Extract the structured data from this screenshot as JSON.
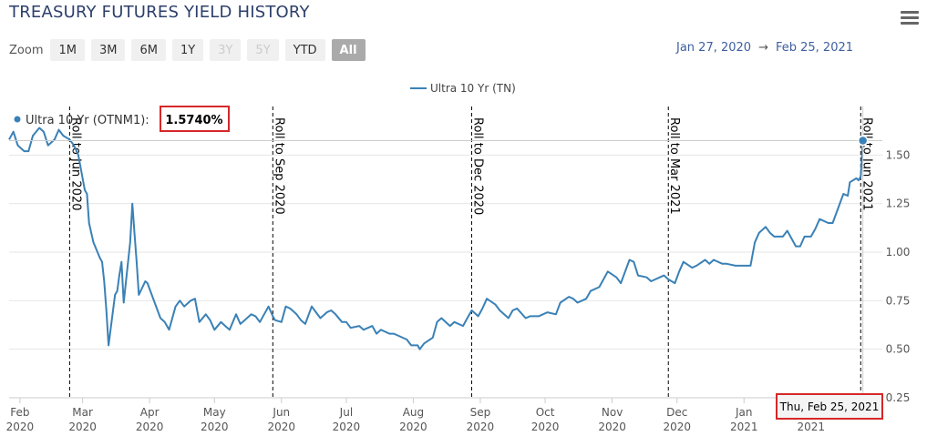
{
  "title": "TREASURY FUTURES YIELD HISTORY",
  "zoom": {
    "label": "Zoom",
    "buttons": [
      {
        "label": "1M",
        "state": "normal"
      },
      {
        "label": "3M",
        "state": "normal"
      },
      {
        "label": "6M",
        "state": "normal"
      },
      {
        "label": "1Y",
        "state": "normal"
      },
      {
        "label": "3Y",
        "state": "disabled"
      },
      {
        "label": "5Y",
        "state": "disabled"
      },
      {
        "label": "YTD",
        "state": "normal"
      },
      {
        "label": "All",
        "state": "selected"
      }
    ]
  },
  "range": {
    "from": "Jan 27, 2020",
    "arrow": "→",
    "to": "Feb 25, 2021"
  },
  "icons": {
    "menu": "hamburger-menu-icon"
  },
  "colors": {
    "series": "#3a81b6",
    "title": "#2d3f6b",
    "range": "#3f60a0",
    "highlight": "#d62728"
  },
  "chart_data": {
    "type": "line",
    "xlim": [
      "2020-01-27",
      "2021-03-06"
    ],
    "ylim": [
      0.25,
      1.75
    ],
    "grid": true,
    "legend_position": "top-center",
    "y_ticks": [
      "0.25",
      "0.50",
      "0.75",
      "1.00",
      "1.25",
      "1.50"
    ],
    "x_ticks": [
      {
        "date": "2020-02-01",
        "month": "Feb",
        "year": "2020"
      },
      {
        "date": "2020-03-01",
        "month": "Mar",
        "year": "2020"
      },
      {
        "date": "2020-04-01",
        "month": "Apr",
        "year": "2020"
      },
      {
        "date": "2020-05-01",
        "month": "May",
        "year": "2020"
      },
      {
        "date": "2020-06-01",
        "month": "Jun",
        "year": "2020"
      },
      {
        "date": "2020-07-01",
        "month": "Jul",
        "year": "2020"
      },
      {
        "date": "2020-08-01",
        "month": "Aug",
        "year": "2020"
      },
      {
        "date": "2020-09-01",
        "month": "Sep",
        "year": "2020"
      },
      {
        "date": "2020-10-01",
        "month": "Oct",
        "year": "2020"
      },
      {
        "date": "2020-11-01",
        "month": "Nov",
        "year": "2020"
      },
      {
        "date": "2020-12-01",
        "month": "Dec",
        "year": "2020"
      },
      {
        "date": "2021-01-01",
        "month": "Jan",
        "year": "2021"
      },
      {
        "date": "2021-02-01",
        "month": "Feb",
        "year": "2021"
      }
    ],
    "series": [
      {
        "name": "Ultra 10 Yr (TN)",
        "tooltip_name": "Ultra 10 Yr (OTNM1):",
        "last_value": "1.5740%",
        "points": [
          [
            "2020-01-27",
            1.58
          ],
          [
            "2020-01-29",
            1.62
          ],
          [
            "2020-01-31",
            1.55
          ],
          [
            "2020-02-03",
            1.52
          ],
          [
            "2020-02-05",
            1.52
          ],
          [
            "2020-02-07",
            1.6
          ],
          [
            "2020-02-10",
            1.64
          ],
          [
            "2020-02-12",
            1.62
          ],
          [
            "2020-02-14",
            1.55
          ],
          [
            "2020-02-17",
            1.58
          ],
          [
            "2020-02-19",
            1.63
          ],
          [
            "2020-02-21",
            1.6
          ],
          [
            "2020-02-24",
            1.58
          ],
          [
            "2020-02-26",
            1.55
          ],
          [
            "2020-02-28",
            1.5
          ],
          [
            "2020-03-02",
            1.32
          ],
          [
            "2020-03-03",
            1.3
          ],
          [
            "2020-03-04",
            1.15
          ],
          [
            "2020-03-05",
            1.1
          ],
          [
            "2020-03-06",
            1.05
          ],
          [
            "2020-03-09",
            0.97
          ],
          [
            "2020-03-10",
            0.95
          ],
          [
            "2020-03-11",
            0.85
          ],
          [
            "2020-03-12",
            0.7
          ],
          [
            "2020-03-13",
            0.52
          ],
          [
            "2020-03-16",
            0.78
          ],
          [
            "2020-03-17",
            0.8
          ],
          [
            "2020-03-18",
            0.88
          ],
          [
            "2020-03-19",
            0.95
          ],
          [
            "2020-03-20",
            0.74
          ],
          [
            "2020-03-23",
            1.05
          ],
          [
            "2020-03-24",
            1.25
          ],
          [
            "2020-03-25",
            1.1
          ],
          [
            "2020-03-26",
            0.95
          ],
          [
            "2020-03-27",
            0.78
          ],
          [
            "2020-03-30",
            0.85
          ],
          [
            "2020-03-31",
            0.84
          ],
          [
            "2020-04-02",
            0.78
          ],
          [
            "2020-04-06",
            0.66
          ],
          [
            "2020-04-08",
            0.64
          ],
          [
            "2020-04-10",
            0.6
          ],
          [
            "2020-04-13",
            0.72
          ],
          [
            "2020-04-15",
            0.75
          ],
          [
            "2020-04-17",
            0.72
          ],
          [
            "2020-04-20",
            0.75
          ],
          [
            "2020-04-22",
            0.76
          ],
          [
            "2020-04-24",
            0.64
          ],
          [
            "2020-04-27",
            0.68
          ],
          [
            "2020-04-29",
            0.65
          ],
          [
            "2020-05-01",
            0.6
          ],
          [
            "2020-05-04",
            0.64
          ],
          [
            "2020-05-06",
            0.62
          ],
          [
            "2020-05-08",
            0.6
          ],
          [
            "2020-05-11",
            0.68
          ],
          [
            "2020-05-13",
            0.63
          ],
          [
            "2020-05-15",
            0.65
          ],
          [
            "2020-05-18",
            0.68
          ],
          [
            "2020-05-20",
            0.67
          ],
          [
            "2020-05-22",
            0.64
          ],
          [
            "2020-05-26",
            0.72
          ],
          [
            "2020-05-28",
            0.67
          ],
          [
            "2020-05-29",
            0.65
          ],
          [
            "2020-06-01",
            0.64
          ],
          [
            "2020-06-03",
            0.72
          ],
          [
            "2020-06-05",
            0.71
          ],
          [
            "2020-06-08",
            0.68
          ],
          [
            "2020-06-10",
            0.65
          ],
          [
            "2020-06-12",
            0.63
          ],
          [
            "2020-06-15",
            0.72
          ],
          [
            "2020-06-17",
            0.69
          ],
          [
            "2020-06-19",
            0.66
          ],
          [
            "2020-06-22",
            0.69
          ],
          [
            "2020-06-24",
            0.7
          ],
          [
            "2020-06-26",
            0.68
          ],
          [
            "2020-06-29",
            0.64
          ],
          [
            "2020-07-01",
            0.64
          ],
          [
            "2020-07-03",
            0.61
          ],
          [
            "2020-07-07",
            0.62
          ],
          [
            "2020-07-09",
            0.6
          ],
          [
            "2020-07-13",
            0.62
          ],
          [
            "2020-07-15",
            0.58
          ],
          [
            "2020-07-17",
            0.6
          ],
          [
            "2020-07-21",
            0.58
          ],
          [
            "2020-07-23",
            0.58
          ],
          [
            "2020-07-27",
            0.56
          ],
          [
            "2020-07-29",
            0.55
          ],
          [
            "2020-07-31",
            0.52
          ],
          [
            "2020-08-03",
            0.52
          ],
          [
            "2020-08-04",
            0.5
          ],
          [
            "2020-08-06",
            0.53
          ],
          [
            "2020-08-10",
            0.56
          ],
          [
            "2020-08-12",
            0.64
          ],
          [
            "2020-08-14",
            0.66
          ],
          [
            "2020-08-18",
            0.62
          ],
          [
            "2020-08-20",
            0.64
          ],
          [
            "2020-08-24",
            0.62
          ],
          [
            "2020-08-26",
            0.66
          ],
          [
            "2020-08-28",
            0.7
          ],
          [
            "2020-08-31",
            0.67
          ],
          [
            "2020-09-02",
            0.71
          ],
          [
            "2020-09-04",
            0.76
          ],
          [
            "2020-09-08",
            0.73
          ],
          [
            "2020-09-10",
            0.7
          ],
          [
            "2020-09-14",
            0.66
          ],
          [
            "2020-09-16",
            0.7
          ],
          [
            "2020-09-18",
            0.71
          ],
          [
            "2020-09-22",
            0.66
          ],
          [
            "2020-09-24",
            0.67
          ],
          [
            "2020-09-28",
            0.67
          ],
          [
            "2020-09-30",
            0.68
          ],
          [
            "2020-10-02",
            0.69
          ],
          [
            "2020-10-06",
            0.68
          ],
          [
            "2020-10-08",
            0.74
          ],
          [
            "2020-10-12",
            0.77
          ],
          [
            "2020-10-14",
            0.76
          ],
          [
            "2020-10-16",
            0.74
          ],
          [
            "2020-10-20",
            0.76
          ],
          [
            "2020-10-22",
            0.8
          ],
          [
            "2020-10-26",
            0.82
          ],
          [
            "2020-10-28",
            0.86
          ],
          [
            "2020-10-30",
            0.9
          ],
          [
            "2020-11-03",
            0.87
          ],
          [
            "2020-11-05",
            0.84
          ],
          [
            "2020-11-09",
            0.96
          ],
          [
            "2020-11-11",
            0.95
          ],
          [
            "2020-11-13",
            0.88
          ],
          [
            "2020-11-17",
            0.87
          ],
          [
            "2020-11-19",
            0.85
          ],
          [
            "2020-11-23",
            0.87
          ],
          [
            "2020-11-25",
            0.88
          ],
          [
            "2020-11-27",
            0.86
          ],
          [
            "2020-11-30",
            0.84
          ],
          [
            "2020-12-02",
            0.9
          ],
          [
            "2020-12-04",
            0.95
          ],
          [
            "2020-12-08",
            0.92
          ],
          [
            "2020-12-10",
            0.93
          ],
          [
            "2020-12-14",
            0.96
          ],
          [
            "2020-12-16",
            0.94
          ],
          [
            "2020-12-18",
            0.96
          ],
          [
            "2020-12-22",
            0.94
          ],
          [
            "2020-12-24",
            0.94
          ],
          [
            "2020-12-28",
            0.93
          ],
          [
            "2020-12-30",
            0.93
          ],
          [
            "2021-01-04",
            0.93
          ],
          [
            "2021-01-06",
            1.05
          ],
          [
            "2021-01-08",
            1.1
          ],
          [
            "2021-01-11",
            1.13
          ],
          [
            "2021-01-13",
            1.1
          ],
          [
            "2021-01-15",
            1.08
          ],
          [
            "2021-01-19",
            1.08
          ],
          [
            "2021-01-21",
            1.11
          ],
          [
            "2021-01-25",
            1.03
          ],
          [
            "2021-01-27",
            1.03
          ],
          [
            "2021-01-29",
            1.08
          ],
          [
            "2021-02-01",
            1.08
          ],
          [
            "2021-02-03",
            1.12
          ],
          [
            "2021-02-05",
            1.17
          ],
          [
            "2021-02-09",
            1.15
          ],
          [
            "2021-02-11",
            1.15
          ],
          [
            "2021-02-16",
            1.3
          ],
          [
            "2021-02-18",
            1.29
          ],
          [
            "2021-02-19",
            1.36
          ],
          [
            "2021-02-22",
            1.38
          ],
          [
            "2021-02-23",
            1.37
          ],
          [
            "2021-02-24",
            1.39
          ],
          [
            "2021-02-25",
            1.574
          ]
        ]
      }
    ],
    "roll_markers": [
      {
        "date": "2020-02-24",
        "label": "Roll to Jun 2020"
      },
      {
        "date": "2020-05-28",
        "label": "Roll to Sep 2020"
      },
      {
        "date": "2020-08-28",
        "label": "Roll to Dec 2020"
      },
      {
        "date": "2020-11-27",
        "label": "Roll to Mar 2021"
      },
      {
        "date": "2021-02-24",
        "label": "Roll to Jun 2021"
      }
    ],
    "crosshair_date": "2021-02-25",
    "crosshair_label": "Thu, Feb 25, 2021"
  }
}
